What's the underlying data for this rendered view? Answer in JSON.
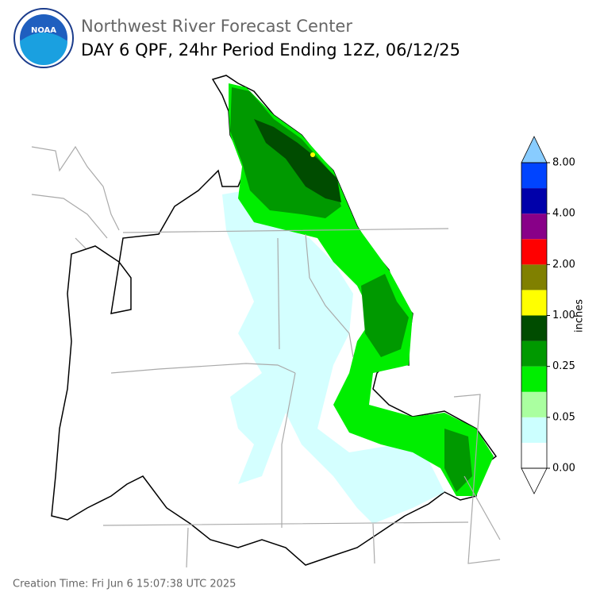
{
  "header": {
    "logo": "NOAA",
    "title": "Northwest River Forecast Center",
    "subtitle": "DAY 6 QPF, 24hr Period Ending 12Z, 06/12/25"
  },
  "colorbar": {
    "label": "inches",
    "ticks": [
      {
        "value": 0,
        "label": "0.00"
      },
      {
        "value": 0.05,
        "label": "0.05"
      },
      {
        "value": 0.25,
        "label": "0.25"
      },
      {
        "value": 1,
        "label": "1.00"
      },
      {
        "value": 2,
        "label": "2.00"
      },
      {
        "value": 4,
        "label": "4.00"
      },
      {
        "value": 8,
        "label": "8.00"
      }
    ],
    "colors": [
      "#ffffff",
      "#ccffff",
      "#aaffa0",
      "#00ee00",
      "#009900",
      "#004c00",
      "#ffff00",
      "#808000",
      "#ff0000",
      "#880088",
      "#0000aa",
      "#0044ff"
    ],
    "under_color": "#ffffff",
    "over_color": "#88ccff"
  },
  "footer": {
    "creation_time": "Creation Time: Fri Jun 6 15:07:38 UTC 2025"
  }
}
